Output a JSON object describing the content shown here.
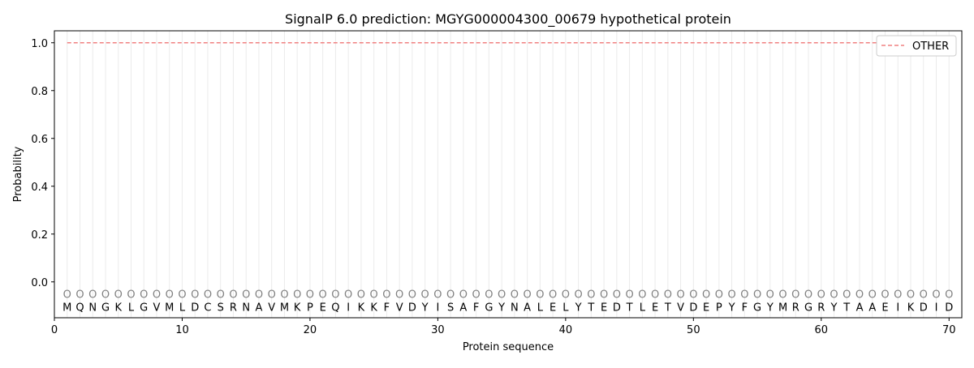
{
  "chart_data": {
    "type": "line",
    "title": "SignalP 6.0 prediction: MGYG000004300_00679 hypothetical protein",
    "xlabel": "Protein sequence",
    "ylabel": "Probability",
    "xlim": [
      0,
      71
    ],
    "ylim": [
      -0.15,
      1.05
    ],
    "xticks": [
      0,
      10,
      20,
      30,
      40,
      50,
      60,
      70
    ],
    "yticks": [
      0.0,
      0.2,
      0.4,
      0.6,
      0.8,
      1.0
    ],
    "ytick_labels": [
      "0.0",
      "0.2",
      "0.4",
      "0.6",
      "0.8",
      "1.0"
    ],
    "grid": "vertical lines at each residue",
    "legend_placement": "top-right",
    "sequence": [
      "M",
      "Q",
      "N",
      "G",
      "K",
      "L",
      "G",
      "V",
      "M",
      "L",
      "D",
      "C",
      "S",
      "R",
      "N",
      "A",
      "V",
      "M",
      "K",
      "P",
      "E",
      "Q",
      "I",
      "K",
      "K",
      "F",
      "V",
      "D",
      "Y",
      "I",
      "S",
      "A",
      "F",
      "G",
      "Y",
      "N",
      "A",
      "L",
      "E",
      "L",
      "Y",
      "T",
      "E",
      "D",
      "T",
      "L",
      "E",
      "T",
      "V",
      "D",
      "E",
      "P",
      "Y",
      "F",
      "G",
      "Y",
      "M",
      "R",
      "G",
      "R",
      "Y",
      "T",
      "A",
      "A",
      "E",
      "I",
      "K",
      "D",
      "I",
      "D"
    ],
    "predicted_label": "O",
    "series": [
      {
        "name": "OTHER",
        "color": "#f08080",
        "style": "dashed",
        "x_range": [
          1,
          70
        ],
        "value": 1.0
      }
    ]
  }
}
